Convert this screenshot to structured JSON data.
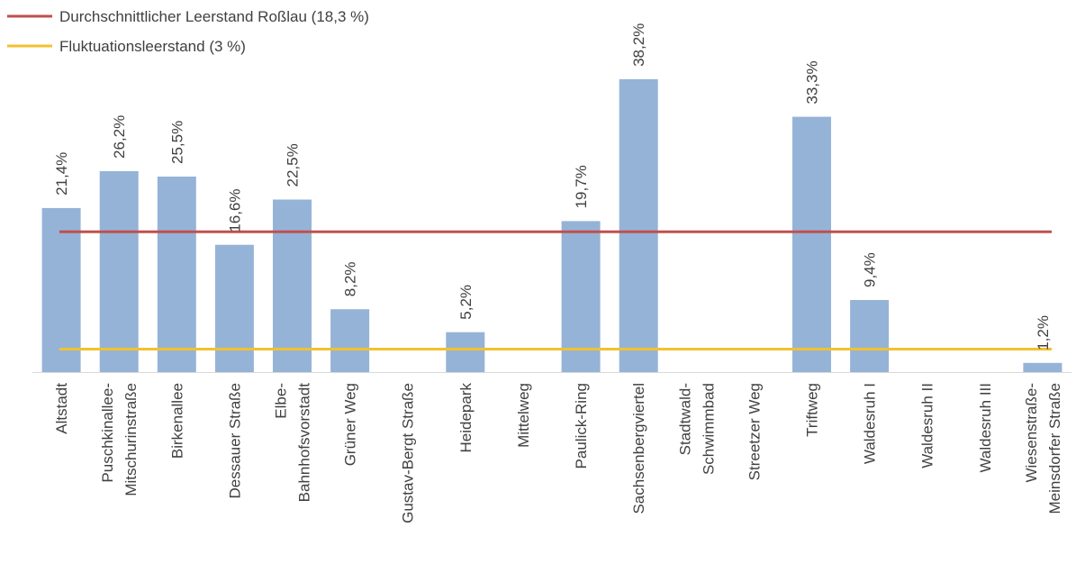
{
  "chart_data": {
    "type": "bar",
    "categories": [
      [
        "Altstadt"
      ],
      [
        "Puschkinallee-",
        "Mitschurinstraße"
      ],
      [
        "Birkenallee"
      ],
      [
        "Dessauer Straße"
      ],
      [
        "Elbe-",
        "Bahnhofsvorstadt"
      ],
      [
        "Grüner Weg"
      ],
      [
        "Gustav-Bergt Straße"
      ],
      [
        "Heidepark"
      ],
      [
        "Mittelweg"
      ],
      [
        "Paulick-Ring"
      ],
      [
        "Sachsenbergviertel"
      ],
      [
        "Stadtwald-",
        "Schwimmbad"
      ],
      [
        "Streetzer Weg"
      ],
      [
        "Triftweg"
      ],
      [
        "Waldesruh I"
      ],
      [
        "Waldesruh II"
      ],
      [
        "Waldesruh III"
      ],
      [
        "Wiesenstraße-",
        "Meinsdorfer Straße"
      ]
    ],
    "values": [
      21.4,
      26.2,
      25.5,
      16.6,
      22.5,
      8.2,
      null,
      5.2,
      null,
      19.7,
      38.2,
      null,
      null,
      33.3,
      9.4,
      null,
      null,
      1.2
    ],
    "value_labels": [
      "21,4%",
      "26,2%",
      "25,5%",
      "16,6%",
      "22,5%",
      "8,2%",
      "",
      "5,2%",
      "",
      "19,7%",
      "38,2%",
      "",
      "",
      "33,3%",
      "9,4%",
      "",
      "",
      "1,2%"
    ],
    "reference_lines": [
      {
        "name": "Durchschnittlicher Leerstand Roßlau (18,3 %)",
        "value": 18.3,
        "color": "#c0504d"
      },
      {
        "name": "Fluktuationsleerstand (3 %)",
        "value": 3,
        "color": "#f2c12e"
      }
    ],
    "bar_color": "#95b3d7",
    "ylim": [
      0,
      40
    ],
    "grid": false,
    "legend_position": "top-left"
  }
}
